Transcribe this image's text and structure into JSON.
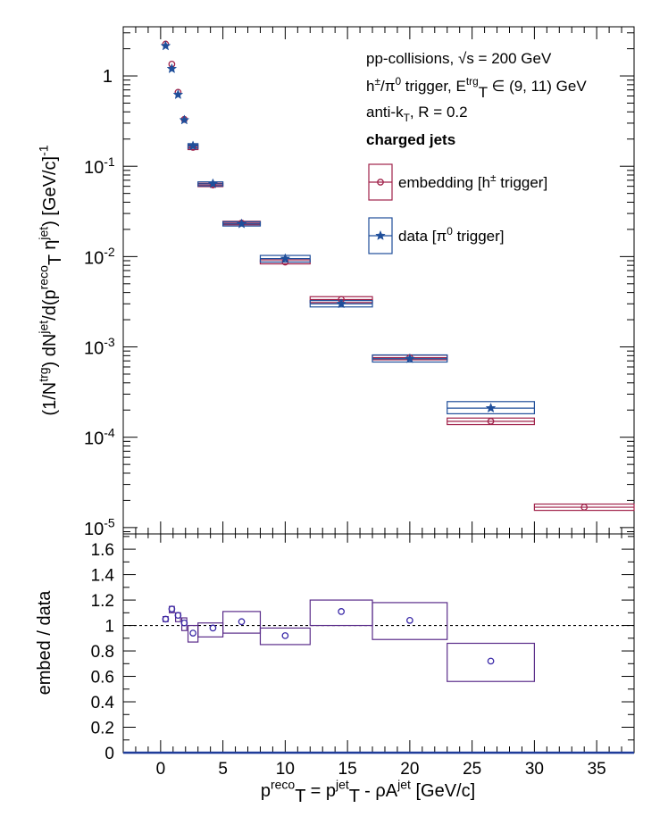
{
  "chart_data": [
    {
      "type": "scatter",
      "panel": "main",
      "ylabel_parts": [
        "(1/N",
        "trg",
        ") dN",
        "jet",
        "/d(p",
        "reco",
        "T",
        " η",
        "jet",
        ") [GeV/c]",
        "-1"
      ],
      "y_scale": "log",
      "ylim": [
        8.5e-06,
        3.5
      ],
      "xlim": [
        -3,
        38
      ],
      "yticks": [
        {
          "exp": "1",
          "base": "1"
        },
        {
          "exp": "-1",
          "base": "10"
        },
        {
          "exp": "-2",
          "base": "10"
        },
        {
          "exp": "-3",
          "base": "10"
        },
        {
          "exp": "-4",
          "base": "10"
        },
        {
          "exp": "-5",
          "base": "10"
        }
      ],
      "annotation": {
        "line1": "pp-collisions, √s = 200 GeV",
        "line2_parts": [
          "h",
          "±",
          "/π",
          "0",
          " trigger, E",
          "trg",
          "T",
          " ∈ (9, 11) GeV"
        ],
        "line3_parts": [
          "anti-k",
          "T",
          ", R = 0.2"
        ],
        "line4": "charged jets"
      },
      "legend": {
        "placement": "top-right",
        "embedding_parts": [
          "embedding [h",
          "±",
          " trigger]"
        ],
        "data_parts": [
          "data [π",
          "0",
          " trigger]"
        ]
      },
      "series": [
        {
          "name": "embedding [h± trigger]",
          "color": "#a0224a",
          "marker": "open-circle",
          "x": [
            0.4,
            0.9,
            1.4,
            1.9,
            2.6,
            4.2,
            6.5,
            10.0,
            14.5,
            20.0,
            26.5,
            34.0
          ],
          "y": [
            2.25,
            1.35,
            0.66,
            0.33,
            0.162,
            0.062,
            0.0235,
            0.0087,
            0.00335,
            0.00076,
            0.00015,
            1.68e-05
          ],
          "box_xlow": [
            null,
            null,
            null,
            null,
            2.2,
            3.0,
            5.0,
            8.0,
            12.0,
            17.0,
            23.0,
            30.0
          ],
          "box_xhigh": [
            null,
            null,
            null,
            null,
            3.0,
            5.0,
            8.0,
            12.0,
            17.0,
            23.0,
            30.0,
            38.0
          ],
          "box_ylow": [
            null,
            null,
            null,
            null,
            0.153,
            0.0595,
            0.0225,
            0.0083,
            0.0031,
            0.00072,
            0.000138,
            1.55e-05
          ],
          "box_yhigh": [
            null,
            null,
            null,
            null,
            0.172,
            0.0648,
            0.0246,
            0.0092,
            0.0036,
            0.00081,
            0.000163,
            1.82e-05
          ]
        },
        {
          "name": "data [π0 trigger]",
          "color": "#1f4e9a",
          "marker": "star",
          "x": [
            0.4,
            0.9,
            1.4,
            1.9,
            2.6,
            4.2,
            6.5,
            10.0,
            14.5,
            20.0,
            26.5
          ],
          "y": [
            2.15,
            1.2,
            0.62,
            0.325,
            0.168,
            0.064,
            0.023,
            0.0095,
            0.003,
            0.00074,
            0.00021
          ],
          "box_xlow": [
            null,
            null,
            null,
            null,
            2.2,
            3.0,
            5.0,
            8.0,
            12.0,
            17.0,
            23.0
          ],
          "box_xhigh": [
            null,
            null,
            null,
            null,
            3.0,
            5.0,
            8.0,
            12.0,
            17.0,
            23.0,
            30.0
          ],
          "box_ylow": [
            null,
            null,
            null,
            null,
            0.158,
            0.0605,
            0.0218,
            0.0087,
            0.00277,
            0.00068,
            0.000182
          ],
          "box_yhigh": [
            null,
            null,
            null,
            null,
            0.178,
            0.0672,
            0.0243,
            0.0103,
            0.00326,
            0.000815,
            0.000248
          ]
        }
      ]
    },
    {
      "type": "scatter",
      "panel": "ratio",
      "ylabel": "embed / data",
      "ylim": [
        0,
        1.72
      ],
      "xlim": [
        -3,
        38
      ],
      "xticks": [
        "0",
        "5",
        "10",
        "15",
        "20",
        "25",
        "30",
        "35"
      ],
      "yticks": [
        "0",
        "0.2",
        "0.4",
        "0.6",
        "0.8",
        "1",
        "1.2",
        "1.4",
        "1.6"
      ],
      "xlabel_parts": [
        "p",
        "reco",
        "T",
        " = p",
        "jet",
        "T",
        " - ρA",
        "jet",
        " [GeV/c]"
      ],
      "reference_line": 1,
      "series": [
        {
          "name": "ratio",
          "color": "#3b2aa8",
          "box_color": "#5a2c8a",
          "x": [
            0.4,
            0.9,
            1.4,
            1.9,
            2.6,
            4.2,
            6.5,
            10.0,
            14.5,
            20.0,
            26.5
          ],
          "y": [
            1.05,
            1.13,
            1.08,
            1.02,
            0.94,
            0.98,
            1.03,
            0.92,
            1.11,
            1.04,
            0.72
          ],
          "box_xlow": [
            0.2,
            0.7,
            1.2,
            1.7,
            2.2,
            3.0,
            5.0,
            8.0,
            12.0,
            17.0,
            23.0
          ],
          "box_xhigh": [
            0.6,
            1.1,
            1.6,
            2.1,
            3.0,
            5.0,
            8.0,
            12.0,
            17.0,
            23.0,
            30.0
          ],
          "box_ylow": [
            1.03,
            1.1,
            1.03,
            0.96,
            0.87,
            0.91,
            0.94,
            0.85,
            1.0,
            0.89,
            0.56
          ],
          "box_yhigh": [
            1.07,
            1.15,
            1.1,
            1.06,
            1.0,
            1.02,
            1.11,
            0.98,
            1.2,
            1.18,
            0.86
          ]
        }
      ]
    }
  ]
}
